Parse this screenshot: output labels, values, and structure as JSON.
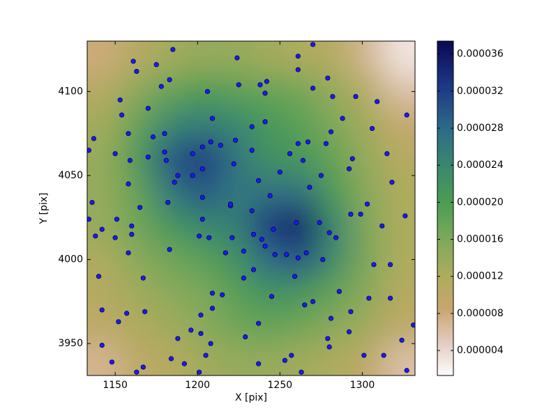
{
  "chart_data": {
    "type": "scatter",
    "xlabel": "X [pix]",
    "ylabel": "Y [pix]",
    "xlim": [
      1133,
      1332
    ],
    "ylim": [
      3931,
      4130
    ],
    "xticks": [
      1150,
      1200,
      1250,
      1300
    ],
    "yticks": [
      3950,
      4000,
      4050,
      4100
    ],
    "color": "#1a1aff",
    "edgecolor": "#00004a",
    "x": [
      1185,
      1161,
      1163,
      1175,
      1183,
      1178,
      1224,
      1206,
      1225,
      1238,
      1242,
      1241,
      1261,
      1261,
      1270,
      1270,
      1279,
      1282,
      1296,
      1309,
      1281,
      1288,
      1278,
      1267,
      1261,
      1256,
      1250,
      1264,
      1275,
      1268,
      1292,
      1294,
      1306,
      1315,
      1327,
      1318,
      1293,
      1303,
      1299,
      1312,
      1326,
      1153,
      1154,
      1170,
      1158,
      1173,
      1180,
      1170,
      1181,
      1180,
      1159,
      1186,
      1188,
      1197,
      1203,
      1197,
      1203,
      1208,
      1209,
      1214,
      1223,
      1222,
      1233,
      1241,
      1233,
      1237,
      1244,
      1233,
      1220,
      1234,
      1239,
      1246,
      1241,
      1247,
      1254,
      1260,
      1261,
      1266,
      1274,
      1280,
      1284,
      1276,
      1259,
      1265,
      1270,
      1281,
      1286,
      1293,
      1292,
      1279,
      1280,
      1307,
      1304,
      1317,
      1317,
      1313,
      1301,
      1324,
      1327,
      1331,
      1245,
      1237,
      1229,
      1237,
      1253,
      1257,
      1263,
      1228,
      1234,
      1217,
      1228,
      1221,
      1207,
      1201,
      1203,
      1203,
      1220,
      1209,
      1215,
      1209,
      1202,
      1202,
      1196,
      1208,
      1205,
      1201,
      1192,
      1184,
      1188,
      1167,
      1163,
      1168,
      1157,
      1167,
      1152,
      1142,
      1142,
      1148,
      1140,
      1158,
      1160,
      1160,
      1150,
      1142,
      1138,
      1134,
      1151,
      1165,
      1182,
      1183,
      1158,
      1136,
      1134,
      1137,
      1150
    ],
    "y": [
      4125,
      4118,
      4112,
      4116,
      4107,
      4103,
      4120,
      4100,
      4104,
      4104,
      4106,
      4099,
      4121,
      4113,
      4128,
      4102,
      4108,
      4097,
      4097,
      4094,
      4076,
      4084,
      4069,
      4070,
      4069,
      4063,
      4052,
      4059,
      4050,
      4043,
      4054,
      4060,
      4078,
      4063,
      4086,
      4046,
      4027,
      4033,
      4027,
      4020,
      4026,
      4095,
      4086,
      4090,
      4075,
      4073,
      4075,
      4061,
      4059,
      4064,
      4059,
      4046,
      4050,
      4063,
      4067,
      4050,
      4054,
      4070,
      4084,
      4068,
      4071,
      4057,
      4079,
      4082,
      4065,
      4047,
      4038,
      4029,
      4032,
      4015,
      4012,
      4018,
      4008,
      4003,
      4003,
      4022,
      4001,
      4004,
      4022,
      4016,
      4013,
      4000,
      3990,
      3973,
      3975,
      3965,
      3981,
      3969,
      3957,
      3953,
      3948,
      3997,
      3977,
      3997,
      3977,
      3943,
      3943,
      3952,
      3934,
      3961,
      3978,
      3962,
      3954,
      3938,
      3940,
      3943,
      3933,
      3989,
      3994,
      4004,
      4005,
      4013,
      4013,
      4014,
      4024,
      4037,
      4033,
      3980,
      3979,
      3971,
      3967,
      3956,
      3958,
      3950,
      3943,
      3933,
      3938,
      3941,
      3953,
      3936,
      3933,
      3969,
      3968,
      3989,
      3963,
      3970,
      3949,
      3939,
      3990,
      4004,
      4015,
      4020,
      4013,
      4018,
      4014,
      4024,
      4024,
      4031,
      4034,
      4006,
      4045,
      4034,
      4065,
      4072,
      4063
    ],
    "heatmap": {
      "x": [
        1143,
        1163,
        1183,
        1203,
        1223,
        1243,
        1263,
        1283,
        1303,
        1323
      ],
      "y": [
        4120,
        4100,
        4080,
        4060,
        4040,
        4020,
        4000,
        3980,
        3960,
        3940
      ],
      "z": [
        [
          8e-06,
          1.1e-05,
          1.3e-05,
          1.4e-05,
          1.4e-05,
          1.3e-05,
          1.2e-05,
          1.1e-05,
          7e-06,
          3e-06
        ],
        [
          1.1e-05,
          1.5e-05,
          1.8e-05,
          2e-05,
          1.9e-05,
          1.8e-05,
          1.7e-05,
          1.4e-05,
          1.1e-05,
          6e-06
        ],
        [
          1.3e-05,
          1.8e-05,
          2.4e-05,
          2.6e-05,
          2.4e-05,
          2.1e-05,
          1.9e-05,
          1.6e-05,
          1.3e-05,
          9e-06
        ],
        [
          1.4e-05,
          2e-05,
          3e-05,
          3.3e-05,
          2.7e-05,
          2.2e-05,
          2.1e-05,
          1.8e-05,
          1.4e-05,
          1.1e-05
        ],
        [
          1.4e-05,
          1.8e-05,
          2.6e-05,
          3e-05,
          2.6e-05,
          2.7e-05,
          2.7e-05,
          2e-05,
          1.5e-05,
          1.2e-05
        ],
        [
          1.4e-05,
          1.7e-05,
          2.1e-05,
          2.4e-05,
          2.5e-05,
          3.3e-05,
          3.6e-05,
          2.4e-05,
          1.6e-05,
          1.2e-05
        ],
        [
          1.2e-05,
          1.5e-05,
          1.7e-05,
          1.9e-05,
          2.2e-05,
          2.8e-05,
          3e-05,
          2.3e-05,
          1.6e-05,
          1.2e-05
        ],
        [
          1.1e-05,
          1.3e-05,
          1.5e-05,
          1.6e-05,
          1.9e-05,
          2.2e-05,
          2.1e-05,
          1.8e-05,
          1.5e-05,
          1.1e-05
        ],
        [
          1e-05,
          1.2e-05,
          1.3e-05,
          1.5e-05,
          1.7e-05,
          1.8e-05,
          1.7e-05,
          1.5e-05,
          1.3e-05,
          1e-05
        ],
        [
          7e-06,
          1e-05,
          1.1e-05,
          1.3e-05,
          1.4e-05,
          1.4e-05,
          1.3e-05,
          1.2e-05,
          1e-05,
          6e-06
        ]
      ]
    },
    "colormap": "gist_earth_r",
    "clim": [
      1.3e-06,
      3.74e-05
    ],
    "cticks": [
      {
        "value": 4e-06,
        "label": "0.000004"
      },
      {
        "value": 8e-06,
        "label": "0.000008"
      },
      {
        "value": 1.2e-05,
        "label": "0.000012"
      },
      {
        "value": 1.6e-05,
        "label": "0.000016"
      },
      {
        "value": 2e-05,
        "label": "0.000020"
      },
      {
        "value": 2.4e-05,
        "label": "0.000024"
      },
      {
        "value": 2.8e-05,
        "label": "0.000028"
      },
      {
        "value": 3.2e-05,
        "label": "0.000032"
      },
      {
        "value": 3.6e-05,
        "label": "0.000036"
      }
    ]
  }
}
